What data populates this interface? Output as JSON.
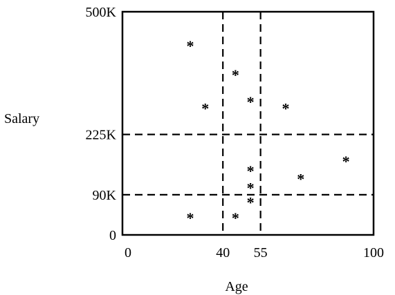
{
  "chart_data": {
    "type": "scatter",
    "title": "",
    "xlabel": "Age",
    "ylabel": "Salary",
    "xlim": [
      0,
      100
    ],
    "ylim": [
      0,
      500000
    ],
    "x_ticks": [
      {
        "value": 0,
        "label": "0"
      },
      {
        "value": 40,
        "label": "40"
      },
      {
        "value": 55,
        "label": "55"
      },
      {
        "value": 100,
        "label": "100"
      }
    ],
    "y_ticks": [
      {
        "value": 0,
        "label": "0"
      },
      {
        "value": 90000,
        "label": "90K"
      },
      {
        "value": 225000,
        "label": "225K"
      },
      {
        "value": 500000,
        "label": "500K"
      }
    ],
    "marker": "*",
    "grid": false,
    "reference_lines": {
      "vertical": [
        40,
        55
      ],
      "horizontal": [
        90000,
        225000
      ],
      "style": "dashed"
    },
    "points": [
      {
        "x": 27,
        "y": 430000
      },
      {
        "x": 45,
        "y": 365000
      },
      {
        "x": 33,
        "y": 290000
      },
      {
        "x": 51,
        "y": 305000
      },
      {
        "x": 65,
        "y": 290000
      },
      {
        "x": 89,
        "y": 172000
      },
      {
        "x": 51,
        "y": 150000
      },
      {
        "x": 71,
        "y": 132000
      },
      {
        "x": 51,
        "y": 112000
      },
      {
        "x": 51,
        "y": 80000
      },
      {
        "x": 27,
        "y": 45000
      },
      {
        "x": 45,
        "y": 45000
      }
    ]
  }
}
